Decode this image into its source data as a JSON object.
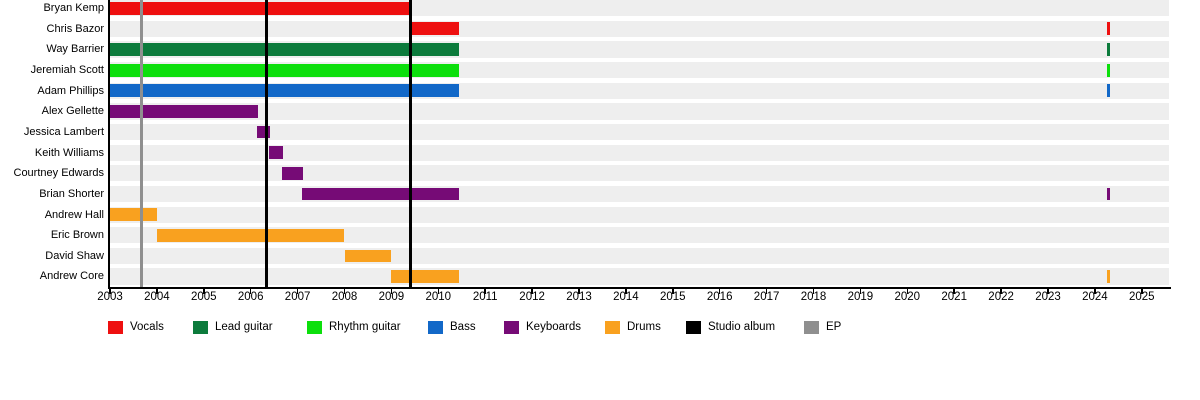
{
  "chart_data": {
    "type": "gantt",
    "title": "",
    "description": "Band members timeline (horizontal bar timeline with release markers)",
    "x_axis": {
      "start": 2003,
      "end": 2025.6,
      "years": [
        2003,
        2004,
        2005,
        2006,
        2007,
        2008,
        2009,
        2010,
        2011,
        2012,
        2013,
        2014,
        2015,
        2016,
        2017,
        2018,
        2019,
        2020,
        2021,
        2022,
        2023,
        2024,
        2025
      ]
    },
    "rows": [
      {
        "name": "Bryan Kemp",
        "segments": [
          {
            "role": "Vocals",
            "start": 2003.0,
            "end": 2009.4
          }
        ]
      },
      {
        "name": "Chris Bazor",
        "segments": [
          {
            "role": "Vocals",
            "start": 2009.4,
            "end": 2010.45
          },
          {
            "role": "Vocals",
            "start": 2024.25,
            "end": 2024.32
          }
        ]
      },
      {
        "name": "Way Barrier",
        "segments": [
          {
            "role": "Lead guitar",
            "start": 2003.0,
            "end": 2010.45
          },
          {
            "role": "Lead guitar",
            "start": 2024.25,
            "end": 2024.32
          }
        ]
      },
      {
        "name": "Jeremiah Scott",
        "segments": [
          {
            "role": "Rhythm guitar",
            "start": 2003.0,
            "end": 2010.45
          },
          {
            "role": "Rhythm guitar",
            "start": 2024.25,
            "end": 2024.32
          }
        ]
      },
      {
        "name": "Adam Phillips",
        "segments": [
          {
            "role": "Bass",
            "start": 2003.0,
            "end": 2010.45
          },
          {
            "role": "Bass",
            "start": 2024.25,
            "end": 2024.32
          }
        ]
      },
      {
        "name": "Alex Gellette",
        "segments": [
          {
            "role": "Keyboards",
            "start": 2003.0,
            "end": 2006.15
          }
        ]
      },
      {
        "name": "Jessica Lambert",
        "segments": [
          {
            "role": "Keyboards",
            "start": 2006.13,
            "end": 2006.41
          }
        ]
      },
      {
        "name": "Keith Williams",
        "segments": [
          {
            "role": "Keyboards",
            "start": 2006.39,
            "end": 2006.69
          }
        ]
      },
      {
        "name": "Courtney Edwards",
        "segments": [
          {
            "role": "Keyboards",
            "start": 2006.66,
            "end": 2007.12
          }
        ]
      },
      {
        "name": "Brian Shorter",
        "segments": [
          {
            "role": "Keyboards",
            "start": 2007.1,
            "end": 2010.45
          },
          {
            "role": "Keyboards",
            "start": 2024.25,
            "end": 2024.32
          }
        ]
      },
      {
        "name": "Andrew Hall",
        "segments": [
          {
            "role": "Drums",
            "start": 2003.0,
            "end": 2004.0
          }
        ]
      },
      {
        "name": "Eric Brown",
        "segments": [
          {
            "role": "Drums",
            "start": 2004.0,
            "end": 2008.0
          }
        ]
      },
      {
        "name": "David Shaw",
        "segments": [
          {
            "role": "Drums",
            "start": 2008.0,
            "end": 2009.0
          }
        ]
      },
      {
        "name": "Andrew Core",
        "segments": [
          {
            "role": "Drums",
            "start": 2009.0,
            "end": 2010.45
          },
          {
            "role": "Drums",
            "start": 2024.25,
            "end": 2024.32
          }
        ]
      }
    ],
    "events": [
      {
        "label": "EP",
        "year": 2003.68
      },
      {
        "label": "Studio album",
        "year": 2006.33
      },
      {
        "label": "Studio album",
        "year": 2009.4
      }
    ],
    "legend": [
      {
        "label": "Vocals",
        "color": "#ee1010"
      },
      {
        "label": "Lead guitar",
        "color": "#0c7b3c"
      },
      {
        "label": "Rhythm guitar",
        "color": "#0cdf0c"
      },
      {
        "label": "Bass",
        "color": "#1268c8"
      },
      {
        "label": "Keyboards",
        "color": "#760b76"
      },
      {
        "label": "Drums",
        "color": "#f9a11f"
      },
      {
        "label": "Studio album",
        "color": "#000000"
      },
      {
        "label": "EP",
        "color": "#8f8f8f"
      }
    ],
    "grid": {
      "row_band_color": "#eeeeee",
      "axis_color": "#000000",
      "legend_position": "bottom"
    }
  }
}
